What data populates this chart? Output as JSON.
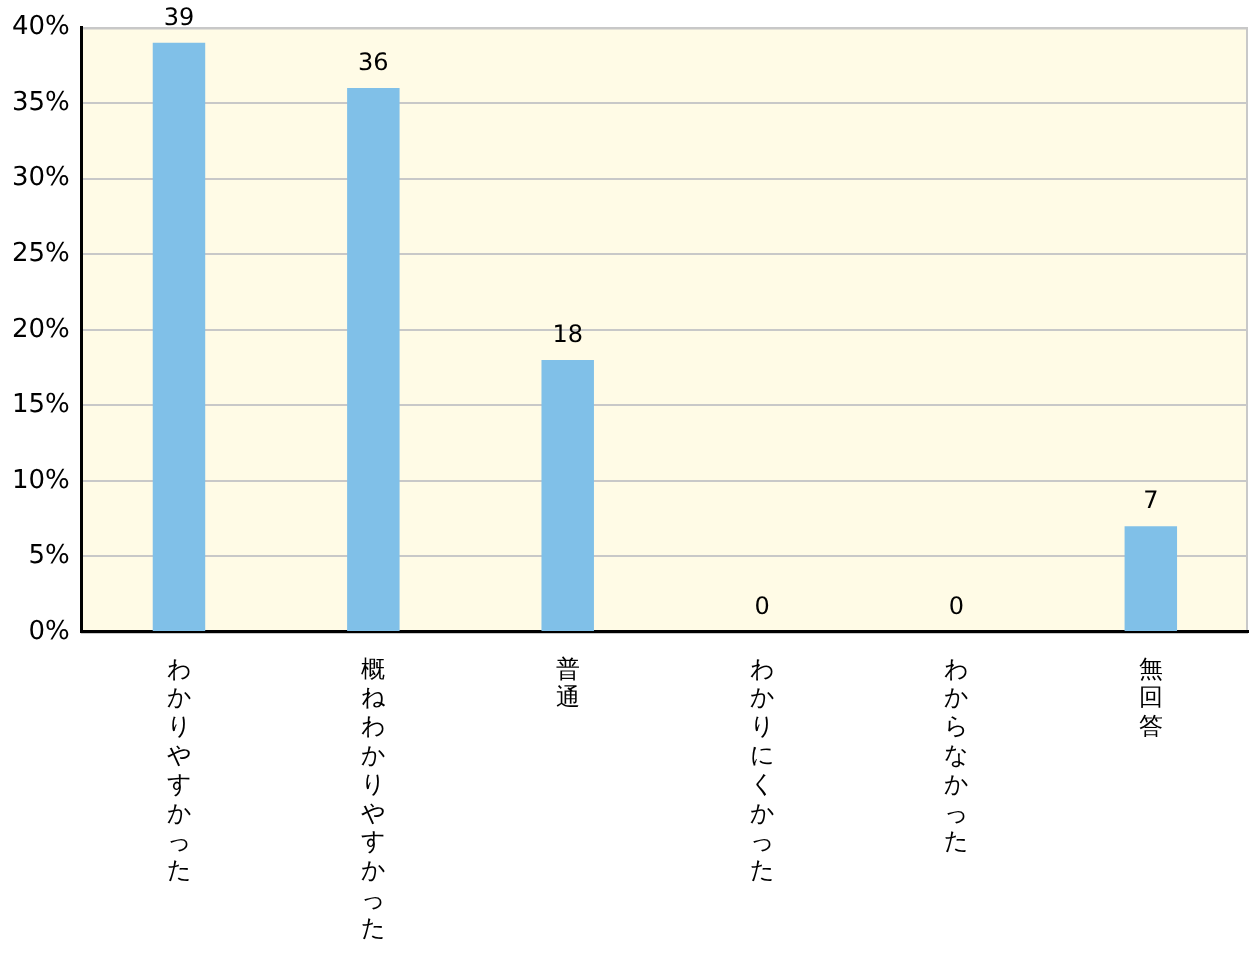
{
  "chart_data": {
    "type": "bar",
    "categories": [
      "わかりやすかった",
      "概ねわかりやすかった",
      "普通",
      "わかりにくかった",
      "わからなかった",
      "無回答"
    ],
    "values": [
      39,
      36,
      18,
      0,
      0,
      7
    ],
    "color": "#80c0e8",
    "ylim": [
      0,
      40
    ],
    "yticks": [
      {
        "value": 0,
        "label": "0%"
      },
      {
        "value": 5,
        "label": "5%"
      },
      {
        "value": 10,
        "label": "10%"
      },
      {
        "value": 15,
        "label": "15%"
      },
      {
        "value": 20,
        "label": "20%"
      },
      {
        "value": 25,
        "label": "25%"
      },
      {
        "value": 30,
        "label": "30%"
      },
      {
        "value": 35,
        "label": "35%"
      },
      {
        "value": 40,
        "label": "40%"
      }
    ],
    "grid": "y",
    "data_labels": true,
    "legend": false
  }
}
